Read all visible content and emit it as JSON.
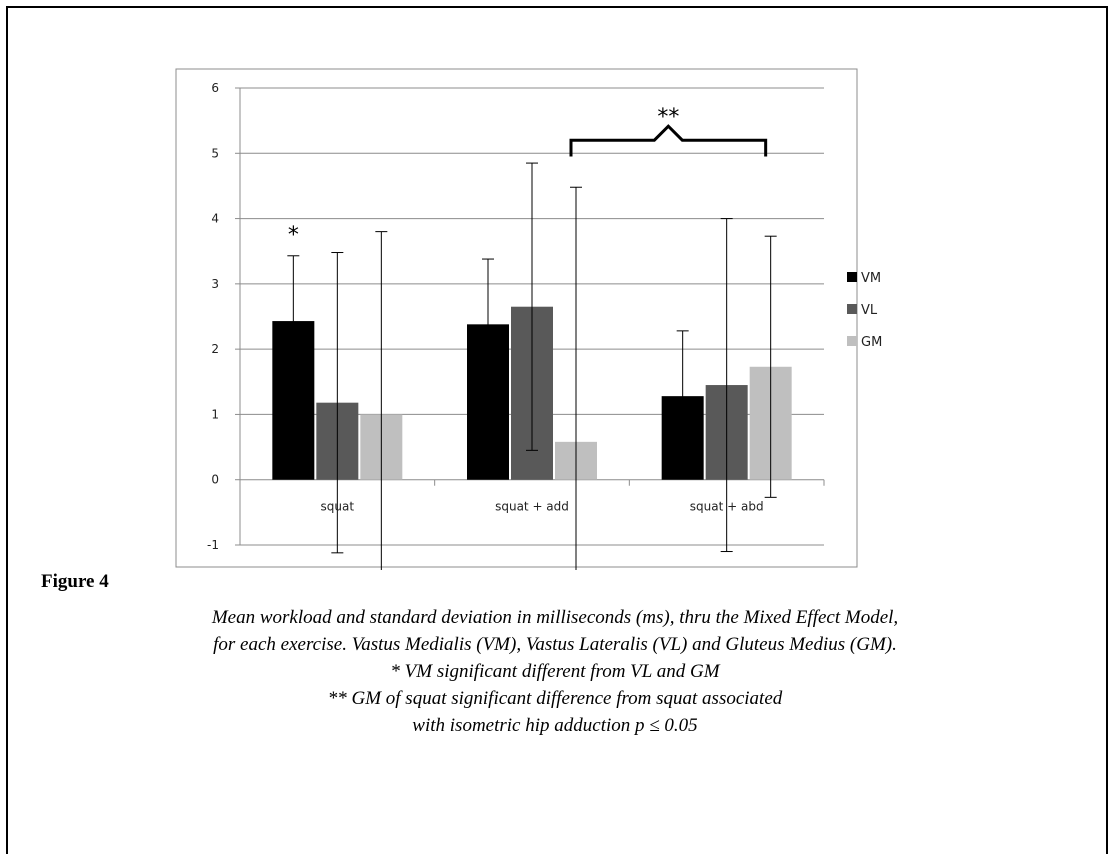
{
  "chart_data": {
    "type": "bar",
    "categories": [
      "squat",
      "squat + add",
      "squat + abd"
    ],
    "series": [
      {
        "name": "VM",
        "color": "#000000",
        "values": [
          2.43,
          2.38,
          1.28
        ],
        "errors": [
          1.0,
          1.0,
          1.0
        ]
      },
      {
        "name": "VL",
        "color": "#595959",
        "values": [
          1.18,
          2.65,
          1.45
        ],
        "errors": [
          2.3,
          2.2,
          2.55
        ]
      },
      {
        "name": "GM",
        "color": "#bfbfbf",
        "values": [
          1.0,
          0.58,
          1.73
        ],
        "errors": [
          2.8,
          3.9,
          2.0
        ]
      }
    ],
    "ylim": [
      -1,
      6
    ],
    "yticks": [
      "-1",
      "0",
      "1",
      "2",
      "3",
      "4",
      "5",
      "6"
    ],
    "grid": true,
    "legend_position": "right",
    "annotations": {
      "single": "*",
      "double": "**"
    }
  },
  "figure": {
    "title": "Figure 4",
    "caption_lines": [
      "Mean workload and standard deviation in milliseconds (ms), thru the Mixed Effect Model,",
      "for each exercise. Vastus Medialis (VM), Vastus Lateralis (VL) and  Gluteus Medius (GM).",
      "* VM significant different from VL and GM",
      "** GM of squat significant difference from squat associated",
      "with isometric hip adduction p ≤ 0.05"
    ]
  }
}
